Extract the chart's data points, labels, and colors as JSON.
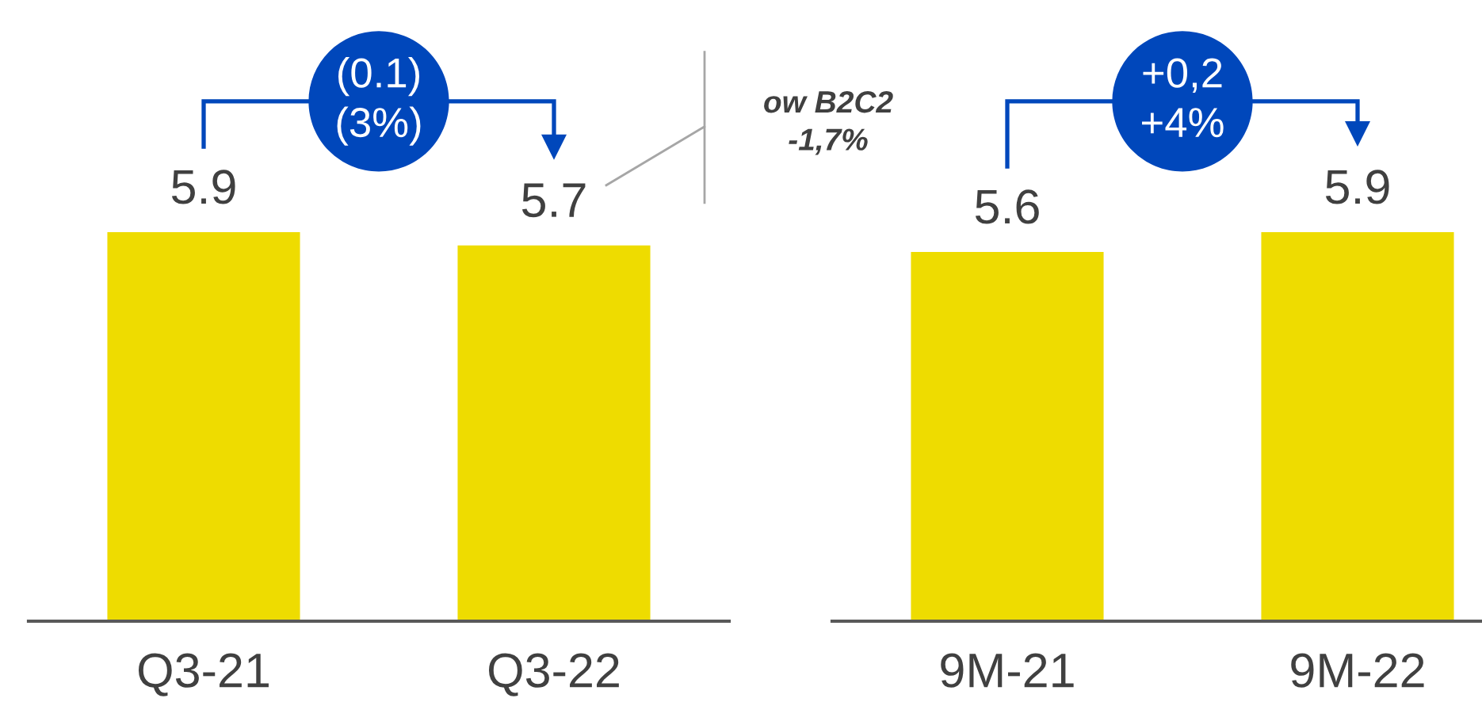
{
  "chart_data": [
    {
      "type": "bar",
      "categories": [
        "Q3-21",
        "Q3-22"
      ],
      "values": [
        5.9,
        5.7
      ],
      "color": "#eedc00",
      "data_labels": true,
      "tick_labels": "x",
      "annotations": [
        "(0.1)\n(3%)",
        "ow B2C2\n-1,7%"
      ]
    },
    {
      "type": "bar",
      "categories": [
        "9M-21",
        "9M-22"
      ],
      "values": [
        5.6,
        5.9
      ],
      "color": "#eedc00",
      "data_labels": true,
      "tick_labels": "x",
      "annotations": [
        "+0,2\n+4%"
      ]
    }
  ]
}
